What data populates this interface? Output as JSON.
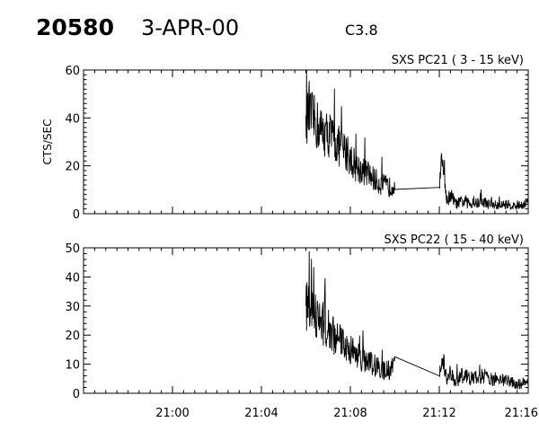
{
  "header": {
    "event_id": "20580",
    "date": "3-APR-00",
    "flare_class": "C3.8"
  },
  "chart_data": [
    {
      "type": "line",
      "title": "SXS PC21  (  3 - 15 keV)",
      "ylabel": "CTS/SEC",
      "xlim": [
        "20:56",
        "21:16"
      ],
      "ylim": [
        0,
        60
      ],
      "y_ticks": [
        0,
        20,
        40,
        60
      ],
      "x_ticks": [],
      "series": [
        {
          "x": [
            "21:06:00",
            "21:06:15",
            "21:06:30",
            "21:06:45",
            "21:07:00",
            "21:07:15",
            "21:07:30",
            "21:07:45",
            "21:08:00",
            "21:08:15",
            "21:08:30",
            "21:08:45",
            "21:09:00",
            "21:09:15",
            "21:09:30",
            "21:09:45",
            "21:10:00",
            "21:12:00",
            "21:12:10",
            "21:12:20",
            "21:12:30",
            "21:12:45",
            "21:13:00",
            "21:13:30",
            "21:14:00",
            "21:14:30",
            "21:15:00",
            "21:15:30",
            "21:16:00"
          ],
          "y": [
            41,
            40,
            37,
            34,
            33,
            31,
            28,
            26,
            23,
            20,
            18,
            17,
            15,
            13,
            12,
            11,
            13,
            11,
            25,
            5,
            8,
            4,
            5,
            4,
            5,
            3,
            4,
            3,
            5
          ]
        }
      ]
    },
    {
      "type": "line",
      "title": "SXS PC22  ( 15 - 40 keV)",
      "ylabel": "",
      "xlim": [
        "20:56",
        "21:16"
      ],
      "ylim": [
        0,
        50
      ],
      "y_ticks": [
        0,
        10,
        20,
        30,
        40,
        50
      ],
      "x_ticks": [
        "21:00",
        "21:04",
        "21:08",
        "21:12",
        "21:16"
      ],
      "series": [
        {
          "x": [
            "21:06:00",
            "21:06:15",
            "21:06:30",
            "21:06:45",
            "21:07:00",
            "21:07:15",
            "21:07:30",
            "21:07:45",
            "21:08:00",
            "21:08:15",
            "21:08:30",
            "21:08:45",
            "21:09:00",
            "21:09:15",
            "21:09:30",
            "21:09:45",
            "21:10:00",
            "21:12:00",
            "21:12:10",
            "21:12:20",
            "21:12:30",
            "21:12:45",
            "21:13:00",
            "21:13:30",
            "21:14:00",
            "21:14:30",
            "21:15:00",
            "21:15:30",
            "21:16:00"
          ],
          "y": [
            30,
            28,
            26,
            24,
            22,
            20,
            18,
            17,
            15,
            14,
            12,
            11,
            10,
            9,
            8,
            8,
            10,
            6,
            12,
            5,
            7,
            4,
            6,
            5,
            6,
            4,
            5,
            3,
            4
          ]
        }
      ]
    }
  ]
}
